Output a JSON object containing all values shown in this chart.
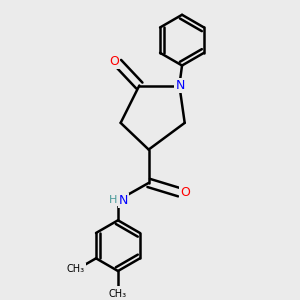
{
  "background_color": "#ebebeb",
  "bond_color": "#000000",
  "bond_width": 1.8,
  "atom_colors": {
    "N": "#0000ff",
    "O": "#ff0000",
    "C": "#000000",
    "H": "#4a9a9a"
  },
  "font_size": 9,
  "figsize": [
    3.0,
    3.0
  ],
  "dpi": 100
}
